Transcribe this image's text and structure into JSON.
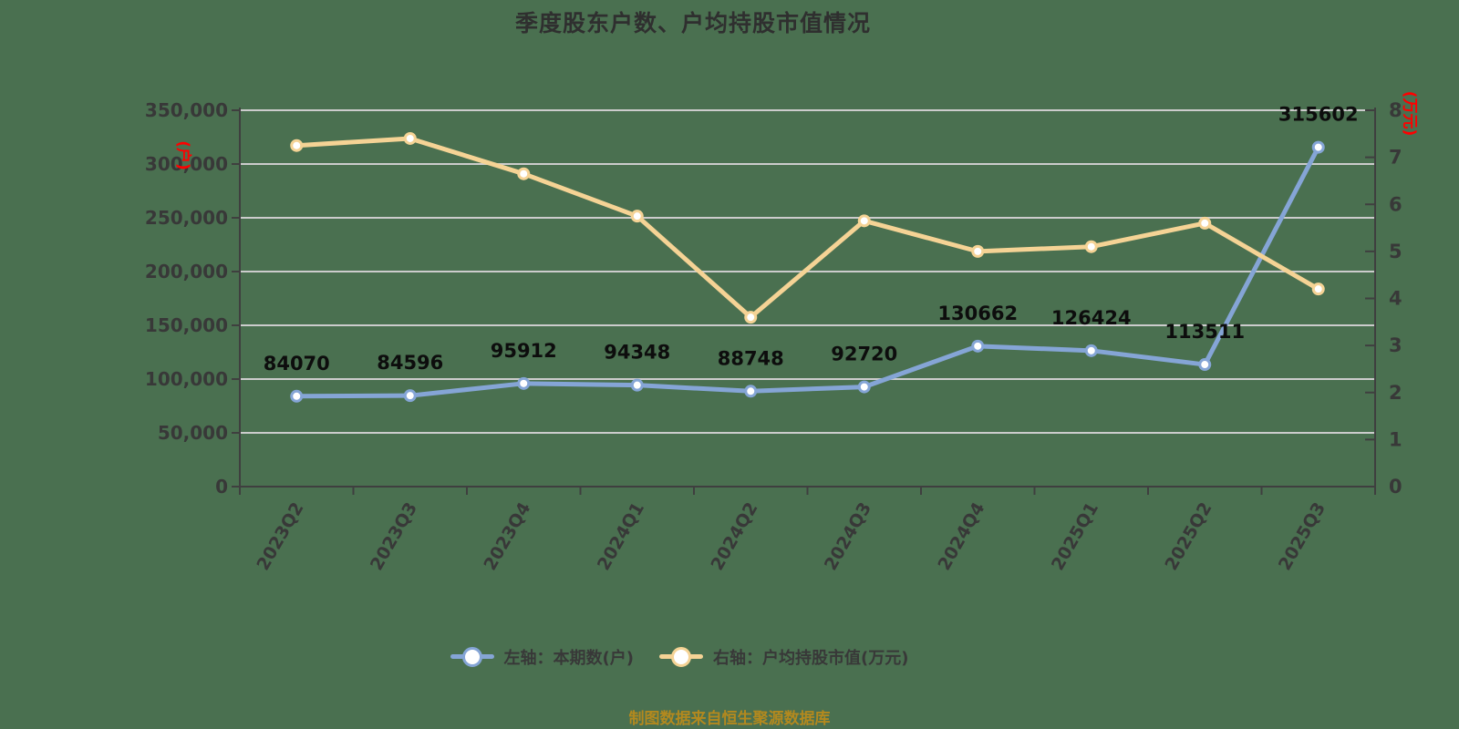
{
  "title": "季度股东户数、户均持股市值情况",
  "footer": "制图数据来自恒生聚源数据库",
  "colors": {
    "background": "#4A7050",
    "title_text": "#2F2F2F",
    "axis_text": "#383838",
    "axis_line": "#3F3F3F",
    "grid_line": "#CCCCCC",
    "series_blue": "#85A5D6",
    "series_yellow": "#F5D395",
    "marker_fill": "#FFFFFF",
    "data_label": "#0D0D0D",
    "unit_label_red": "#FF0000",
    "footer_text": "#B3891E"
  },
  "left_axis": {
    "unit": "(户)",
    "ticks": [
      "350,000",
      "300,000",
      "250,000",
      "200,000",
      "150,000",
      "100,000",
      "50,000",
      "0"
    ]
  },
  "right_axis": {
    "unit": "(万元)",
    "ticks": [
      "8",
      "7",
      "6",
      "5",
      "4",
      "3",
      "2",
      "1",
      "0"
    ]
  },
  "legend": [
    {
      "label": "左轴：本期数(户)",
      "color": "#85A5D6"
    },
    {
      "label": "右轴：户均持股市值(万元)",
      "color": "#F5D395"
    }
  ],
  "chart_data": {
    "type": "line",
    "title": "季度股东户数、户均持股市值情况",
    "categories": [
      "2023Q2",
      "2023Q3",
      "2023Q4",
      "2024Q1",
      "2024Q2",
      "2024Q3",
      "2024Q4",
      "2025Q1",
      "2025Q2",
      "2025Q3"
    ],
    "series": [
      {
        "name": "左轴：本期数(户)",
        "axis": "left",
        "color": "#85A5D6",
        "values": [
          84070,
          84596,
          95912,
          94348,
          88748,
          92720,
          130662,
          126424,
          113511,
          315602
        ],
        "labels": [
          "84070",
          "84596",
          "95912",
          "94348",
          "88748",
          "92720",
          "130662",
          "126424",
          "113511",
          "315602"
        ]
      },
      {
        "name": "右轴：户均持股市值(万元)",
        "axis": "right",
        "color": "#F5D395",
        "values": [
          7.25,
          7.4,
          6.65,
          5.75,
          3.6,
          5.65,
          5.0,
          5.1,
          5.6,
          4.2
        ],
        "labels": []
      }
    ],
    "left_ylim": [
      0,
      350000
    ],
    "right_ylim": [
      0,
      8
    ],
    "grid": true,
    "legend_position": "bottom"
  }
}
